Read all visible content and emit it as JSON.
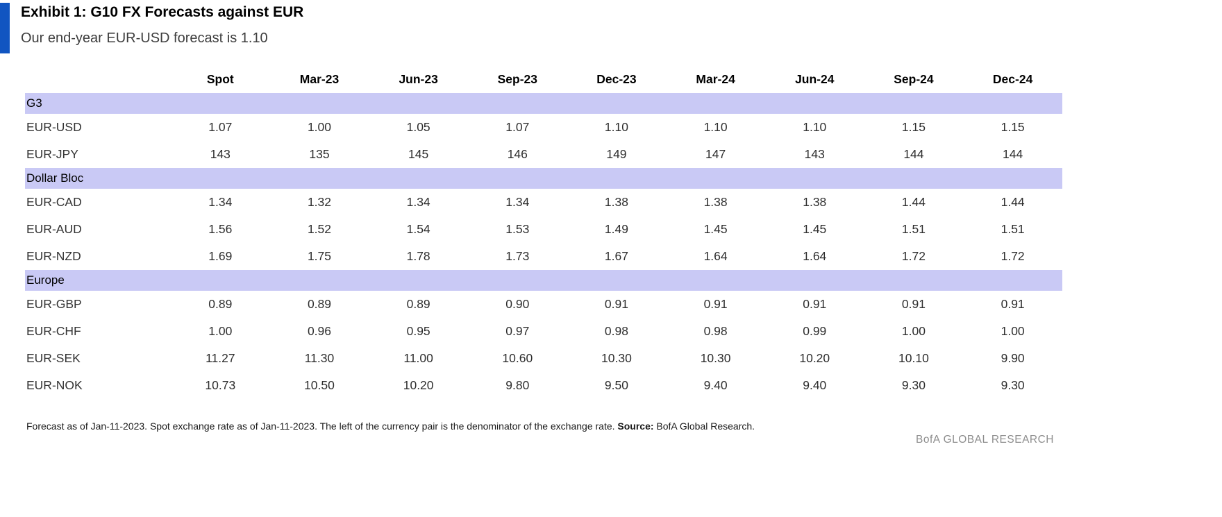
{
  "exhibit": {
    "title": "Exhibit 1: G10 FX Forecasts against EUR",
    "subtitle": "Our end-year EUR-USD forecast is 1.10"
  },
  "table": {
    "columns": [
      "",
      "Spot",
      "Mar-23",
      "Jun-23",
      "Sep-23",
      "Dec-23",
      "Mar-24",
      "Jun-24",
      "Sep-24",
      "Dec-24"
    ],
    "sections": [
      {
        "name": "G3",
        "rows": [
          {
            "pair": "EUR-USD",
            "values": [
              "1.07",
              "1.00",
              "1.05",
              "1.07",
              "1.10",
              "1.10",
              "1.10",
              "1.15",
              "1.15"
            ]
          },
          {
            "pair": "EUR-JPY",
            "values": [
              "143",
              "135",
              "145",
              "146",
              "149",
              "147",
              "143",
              "144",
              "144"
            ]
          }
        ]
      },
      {
        "name": "Dollar Bloc",
        "rows": [
          {
            "pair": "EUR-CAD",
            "values": [
              "1.34",
              "1.32",
              "1.34",
              "1.34",
              "1.38",
              "1.38",
              "1.38",
              "1.44",
              "1.44"
            ]
          },
          {
            "pair": "EUR-AUD",
            "values": [
              "1.56",
              "1.52",
              "1.54",
              "1.53",
              "1.49",
              "1.45",
              "1.45",
              "1.51",
              "1.51"
            ]
          },
          {
            "pair": "EUR-NZD",
            "values": [
              "1.69",
              "1.75",
              "1.78",
              "1.73",
              "1.67",
              "1.64",
              "1.64",
              "1.72",
              "1.72"
            ]
          }
        ]
      },
      {
        "name": "Europe",
        "rows": [
          {
            "pair": "EUR-GBP",
            "values": [
              "0.89",
              "0.89",
              "0.89",
              "0.90",
              "0.91",
              "0.91",
              "0.91",
              "0.91",
              "0.91"
            ]
          },
          {
            "pair": "EUR-CHF",
            "values": [
              "1.00",
              "0.96",
              "0.95",
              "0.97",
              "0.98",
              "0.98",
              "0.99",
              "1.00",
              "1.00"
            ]
          },
          {
            "pair": "EUR-SEK",
            "values": [
              "11.27",
              "11.30",
              "11.00",
              "10.60",
              "10.30",
              "10.30",
              "10.20",
              "10.10",
              "9.90"
            ]
          },
          {
            "pair": "EUR-NOK",
            "values": [
              "10.73",
              "10.50",
              "10.20",
              "9.80",
              "9.50",
              "9.40",
              "9.40",
              "9.30",
              "9.30"
            ]
          }
        ]
      }
    ]
  },
  "footnote": {
    "text": "Forecast as of Jan-11-2023. Spot exchange rate as of Jan-11-2023. The left of the currency pair is the denominator of the exchange rate. ",
    "source_label": "Source:",
    "source_value": " BofA Global Research."
  },
  "branding": {
    "label": "BofA GLOBAL RESEARCH"
  },
  "colors": {
    "accent_blue": "#1155c1",
    "section_band": "#c9c9f5",
    "branding_gray": "#8e8e8e"
  }
}
